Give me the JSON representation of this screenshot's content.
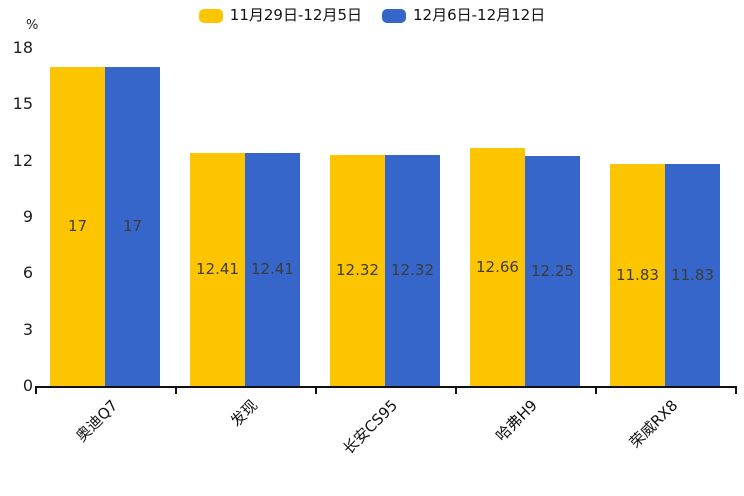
{
  "chart_data": {
    "type": "bar",
    "title": "",
    "unit": "%",
    "categories": [
      "奥迪Q7",
      "发现",
      "长安CS95",
      "哈弗H9",
      "荣威RX8"
    ],
    "series": [
      {
        "name": "11月29日-12月5日",
        "color": "#FDC500",
        "values": [
          17,
          12.41,
          12.32,
          12.66,
          11.83
        ]
      },
      {
        "name": "12月6日-12月12日",
        "color": "#3666CA",
        "values": [
          17,
          12.41,
          12.32,
          12.25,
          11.83
        ]
      }
    ],
    "ylim": [
      0,
      18
    ],
    "yticks": [
      0,
      3,
      6,
      9,
      12,
      15,
      18
    ],
    "grid": false,
    "legend_position": "top",
    "value_labels_inside_bars": true,
    "xlabel_rotation_deg": 45,
    "axis_color": "#111111",
    "value_label_color": "#3c3c3c"
  }
}
